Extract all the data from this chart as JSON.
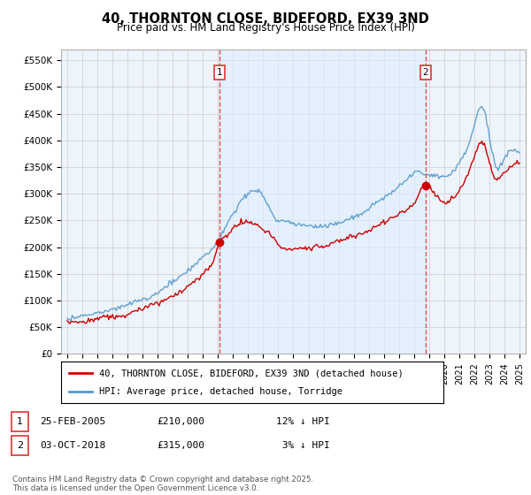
{
  "title": "40, THORNTON CLOSE, BIDEFORD, EX39 3ND",
  "subtitle": "Price paid vs. HM Land Registry's House Price Index (HPI)",
  "ylabel_ticks": [
    "£0",
    "£50K",
    "£100K",
    "£150K",
    "£200K",
    "£250K",
    "£300K",
    "£350K",
    "£400K",
    "£450K",
    "£500K",
    "£550K"
  ],
  "ytick_values": [
    0,
    50000,
    100000,
    150000,
    200000,
    250000,
    300000,
    350000,
    400000,
    450000,
    500000,
    550000
  ],
  "ylim": [
    0,
    570000
  ],
  "sale1_t": 2005.12,
  "sale1_p": 210000,
  "sale2_t": 2018.75,
  "sale2_p": 315000,
  "legend_line1": "40, THORNTON CLOSE, BIDEFORD, EX39 3ND (detached house)",
  "legend_line2": "HPI: Average price, detached house, Torridge",
  "footer": "Contains HM Land Registry data © Crown copyright and database right 2025.\nThis data is licensed under the Open Government Licence v3.0.",
  "line_red": "#cc0000",
  "line_blue": "#5599cc",
  "fill_color": "#ddeeff",
  "bg_color": "#ffffff",
  "grid_color": "#cccccc",
  "vline_color": "#dd3333"
}
